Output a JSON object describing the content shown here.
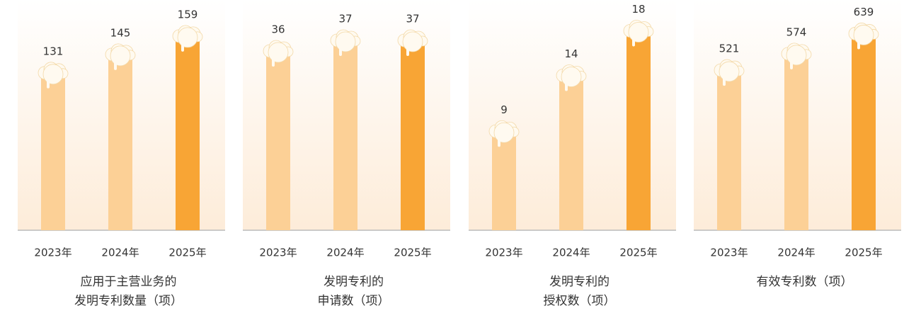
{
  "chart_data": [
    {
      "type": "bar",
      "title": [
        "应用于主营业务的",
        "发明专利数量（项）"
      ],
      "categories": [
        "2023年",
        "2024年",
        "2025年"
      ],
      "values": [
        131,
        145,
        159
      ],
      "colors": [
        "#fcd096",
        "#fcd096",
        "#f8a535"
      ],
      "ylim": [
        10,
        180
      ]
    },
    {
      "type": "bar",
      "title": [
        "发明专利的",
        "申请数（项）"
      ],
      "categories": [
        "2023年",
        "2024年",
        "2025年"
      ],
      "values": [
        36,
        37,
        37
      ],
      "colors": [
        "#fcd096",
        "#fcd096",
        "#f8a535"
      ],
      "ylim": [
        19,
        40
      ]
    },
    {
      "type": "bar",
      "title": [
        "发明专利的",
        "授权数（项）"
      ],
      "categories": [
        "2023年",
        "2024年",
        "2025年"
      ],
      "values": [
        9,
        14,
        18
      ],
      "colors": [
        "#fcd096",
        "#fcd096",
        "#f8a535"
      ],
      "ylim": [
        0,
        20
      ]
    },
    {
      "type": "bar",
      "title": [
        "有效专利数（项）"
      ],
      "categories": [
        "2023年",
        "2024年",
        "2025年"
      ],
      "values": [
        521,
        574,
        639
      ],
      "colors": [
        "#fcd096",
        "#fcd096",
        "#f8a535"
      ],
      "ylim": [
        0,
        720
      ]
    }
  ]
}
